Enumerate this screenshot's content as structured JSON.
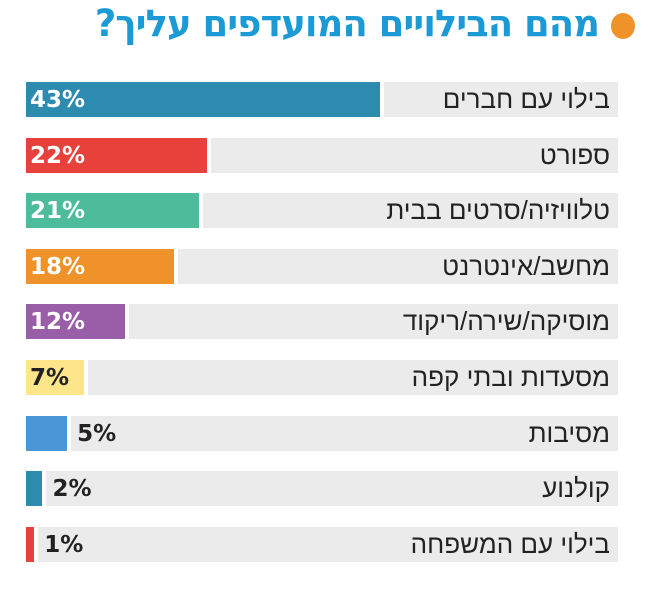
{
  "chart_data": {
    "type": "bar",
    "orientation": "horizontal",
    "title": "מהם הבילויים המועדפים עליך?",
    "title_color": "#1b9ad6",
    "bullet_color": "#f0922a",
    "categories": [
      "בילוי עם חברים",
      "ספורט",
      "טלוויזיה/סרטים בבית",
      "מחשב/אינטרנט",
      "מוסיקה/שירה/ריקוד",
      "מסעדות ובתי קפה",
      "מסיבות",
      "קולנוע",
      "בילוי עם המשפחה"
    ],
    "values": [
      43,
      22,
      21,
      18,
      12,
      7,
      5,
      2,
      1
    ],
    "data_labels": [
      "43%",
      "22%",
      "21%",
      "18%",
      "12%",
      "7%",
      "5%",
      "2%",
      "1%"
    ],
    "colors": [
      "#2e8bb0",
      "#e8403b",
      "#4cbc9a",
      "#f0922a",
      "#9a5ea8",
      "#fde58a",
      "#4a96d6",
      "#2e8bb0",
      "#e8403b"
    ],
    "unit": "%",
    "grid": false,
    "legend": "none"
  }
}
